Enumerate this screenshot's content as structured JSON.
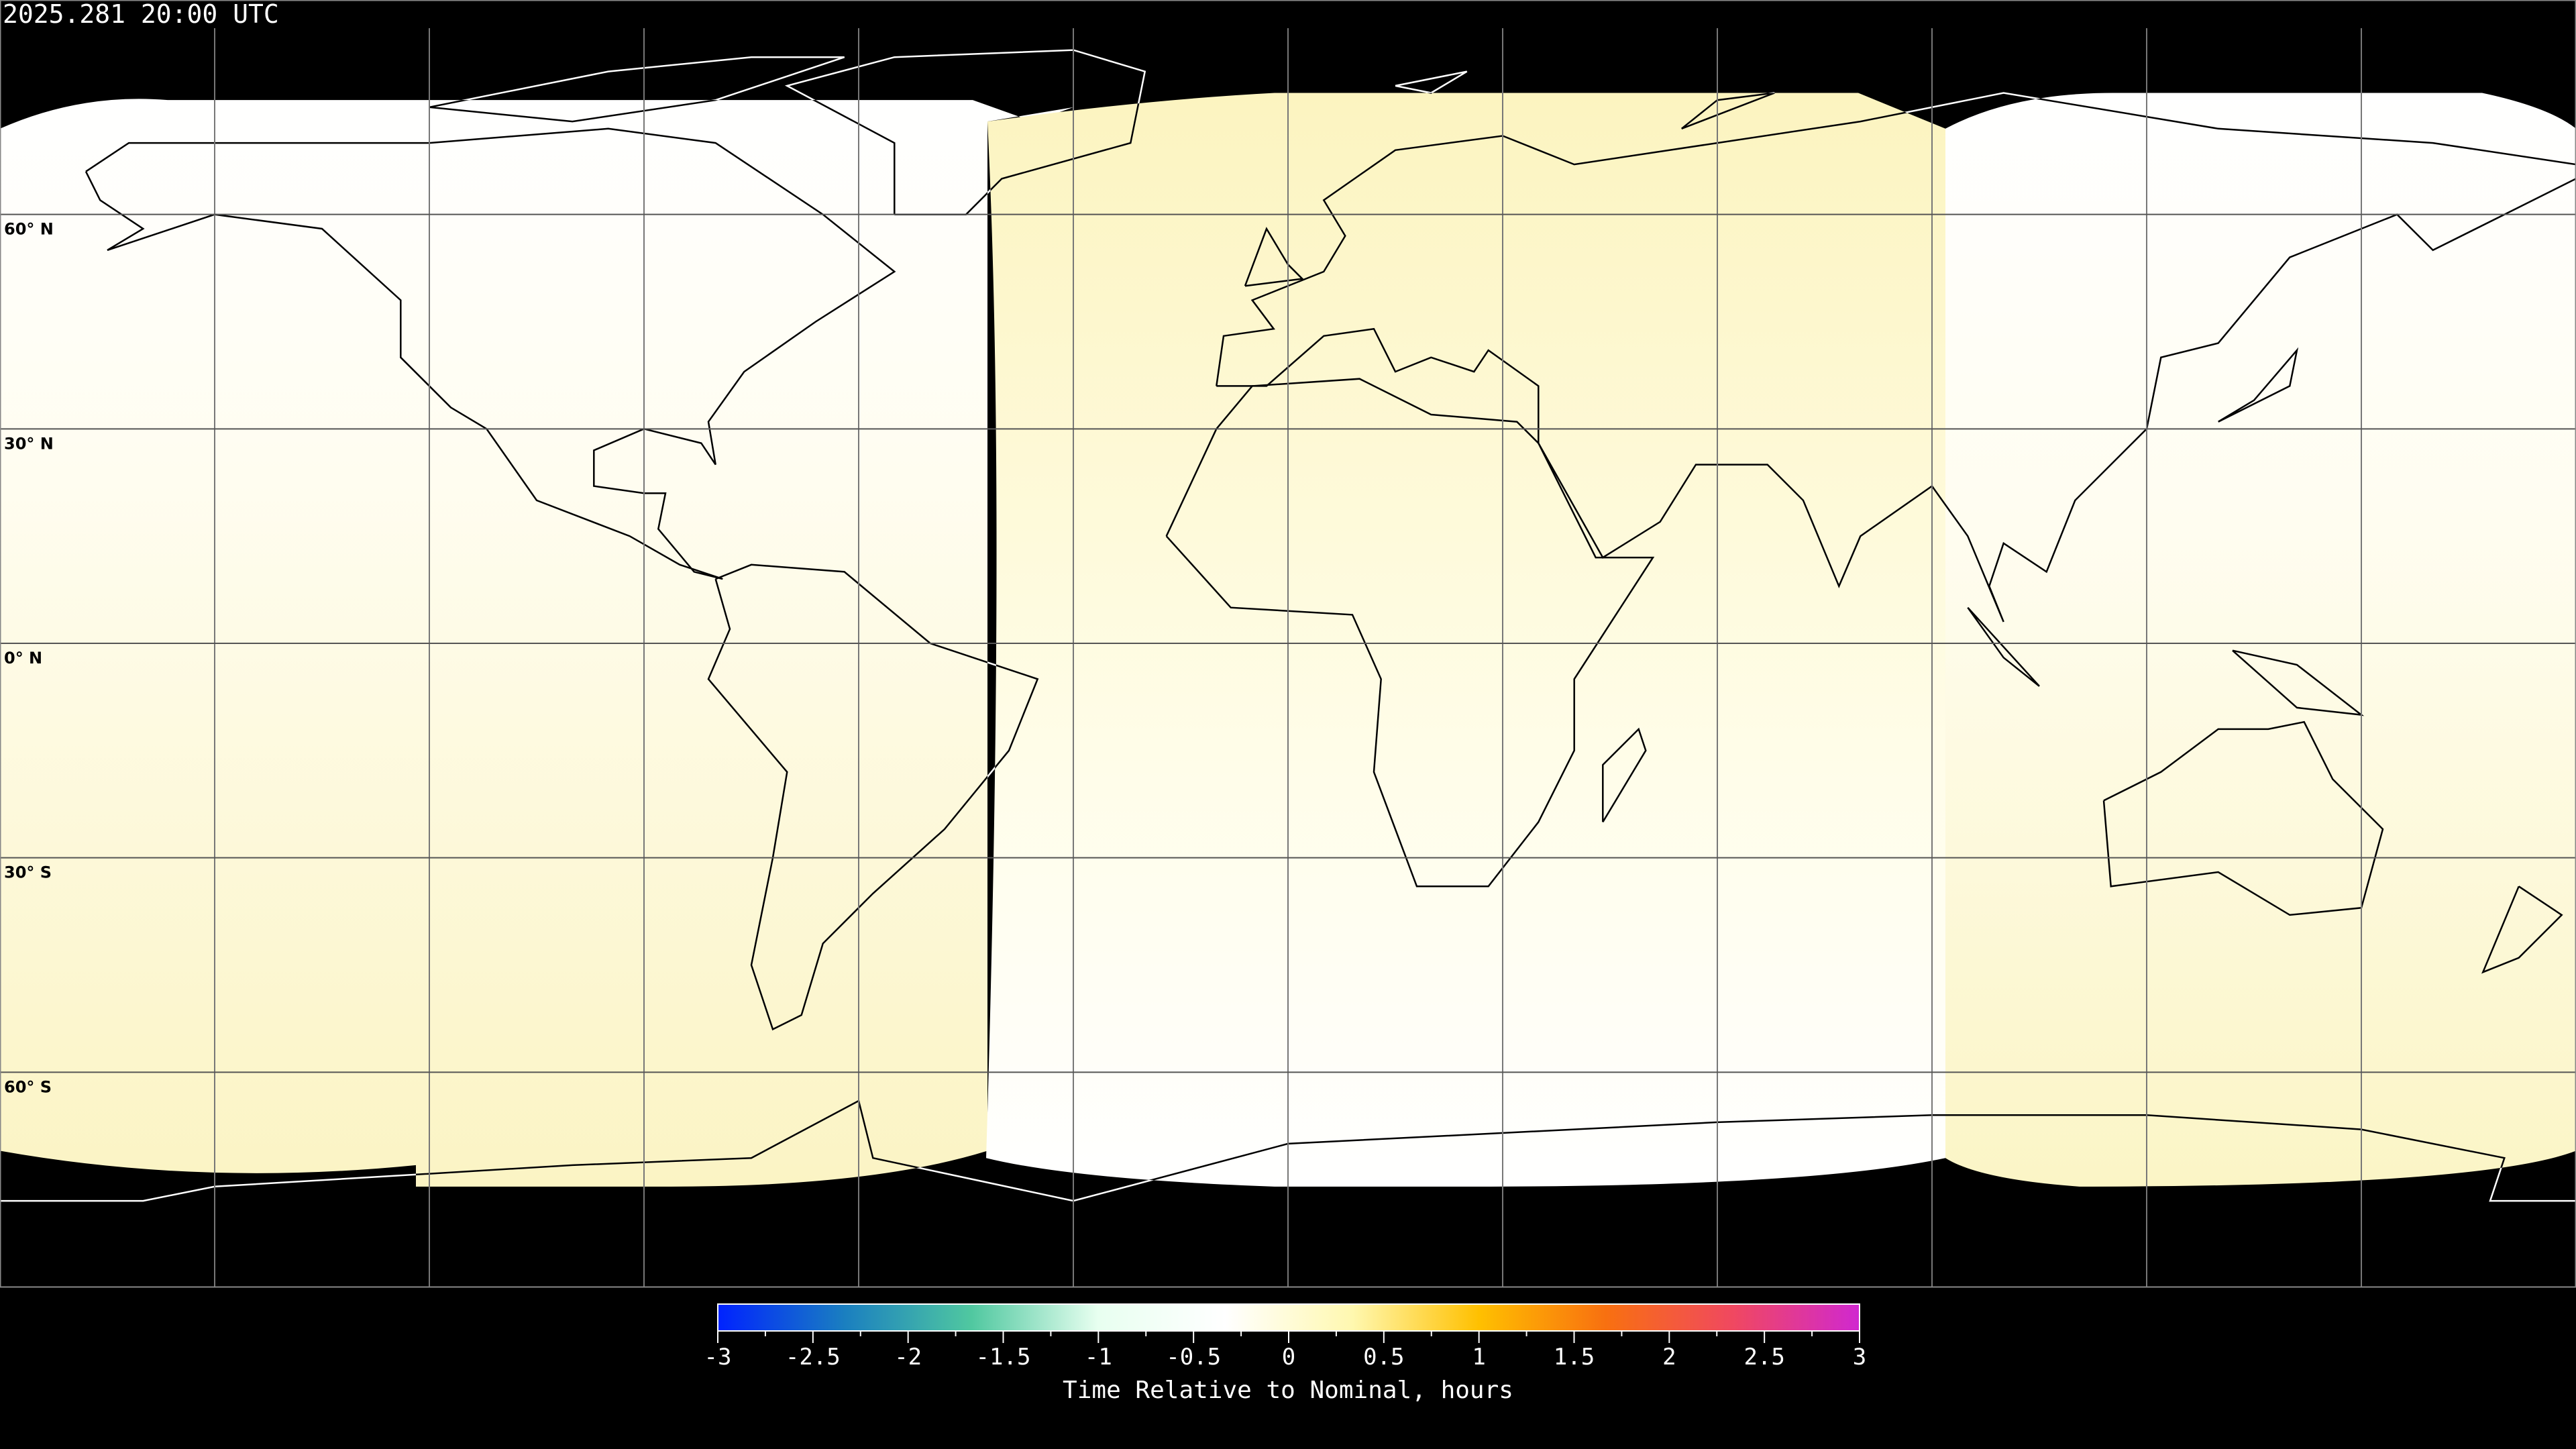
{
  "title": "2025.281 20:00 UTC",
  "map": {
    "projection": "equirectangular",
    "latitude_labels": [
      "60° N",
      "30° N",
      "0° N",
      "30° S",
      "60° S"
    ],
    "latitude_values": [
      60,
      30,
      0,
      -30,
      -60
    ],
    "longitude_gridlines": [
      -150,
      -120,
      -90,
      -60,
      -30,
      0,
      30,
      60,
      90,
      120,
      150
    ],
    "swaths": [
      {
        "lon_range": [
          -180,
          -42
        ],
        "value_top": 0.0,
        "value_bottom": 0.3
      },
      {
        "lon_range": [
          -42,
          92
        ],
        "value_top": 0.3,
        "value_bottom": 0.0
      },
      {
        "lon_range": [
          92,
          180
        ],
        "value_top": 0.0,
        "value_bottom": 0.3
      }
    ],
    "no_data_color": "#000000",
    "coastline_color_on_data": "#000000",
    "coastline_color_on_black": "#ffffff"
  },
  "colorbar": {
    "label": "Time Relative to Nominal, hours",
    "range": [
      -3,
      3
    ],
    "ticks": [
      "-3",
      "-2.5",
      "-2",
      "-1.5",
      "-1",
      "-0.5",
      "0",
      "0.5",
      "1",
      "1.5",
      "2",
      "2.5",
      "3"
    ],
    "colors": [
      "#0022ff",
      "#1a7fc0",
      "#50c8a0",
      "#e8fff0",
      "#ffffff",
      "#fff8b0",
      "#ffc000",
      "#f87010",
      "#f04860",
      "#d028d0"
    ]
  }
}
